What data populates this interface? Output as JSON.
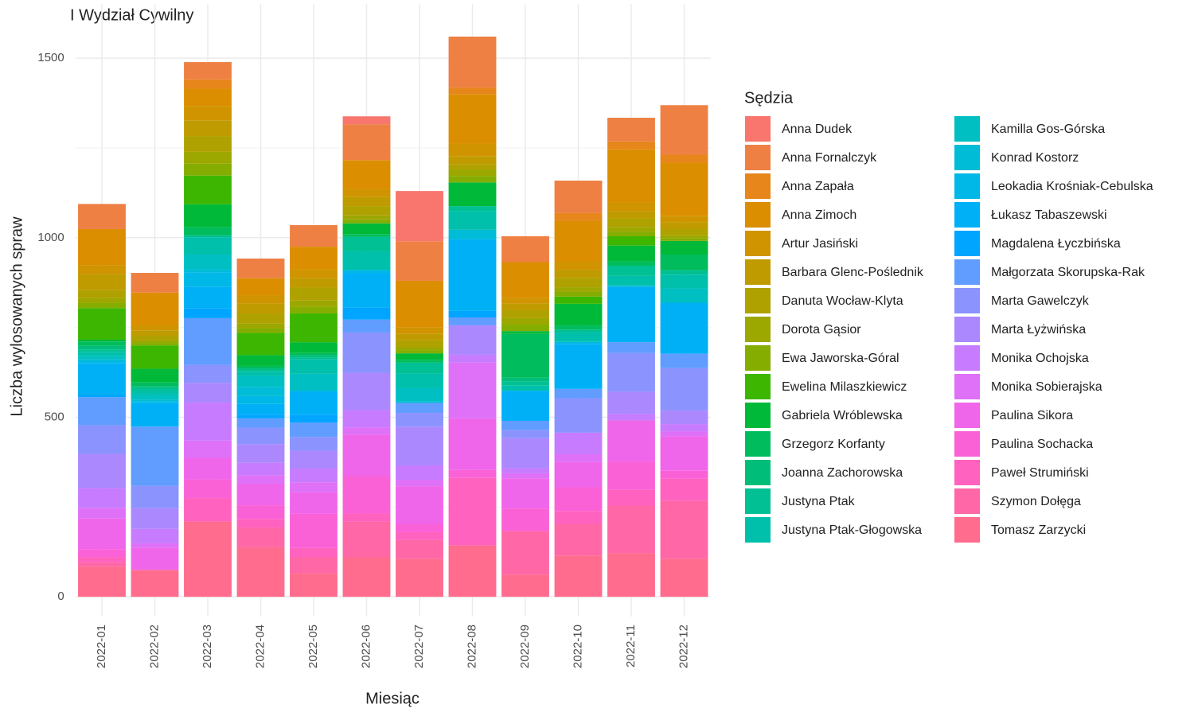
{
  "chart_data": {
    "type": "stacked_bar",
    "title": "I Wydział Cywilny",
    "x_label": "Miesiąc",
    "y_label": "Liczba wylosowanych spraw",
    "legend_title": "Sędzia",
    "categories": [
      "2022-01",
      "2022-02",
      "2022-03",
      "2022-04",
      "2022-05",
      "2022-06",
      "2022-07",
      "2022-08",
      "2022-09",
      "2022-10",
      "2022-11",
      "2022-12"
    ],
    "ylim": [
      -55,
      1650
    ],
    "yticks": [
      0,
      500,
      1000,
      1500
    ],
    "grid": true,
    "legend": "right",
    "series": [
      {
        "name": "Anna Dudek",
        "color": "#F8766D",
        "values": [
          0,
          0,
          0,
          0,
          0,
          22,
          140,
          0,
          0,
          0,
          0,
          0
        ]
      },
      {
        "name": "Anna Fornalczyk",
        "color": "#EE8044",
        "values": [
          70,
          55,
          48,
          55,
          60,
          100,
          110,
          142,
          72,
          90,
          66,
          138
        ]
      },
      {
        "name": "Anna Zapała",
        "color": "#E7861B",
        "values": [
          0,
          0,
          26,
          0,
          0,
          0,
          0,
          18,
          0,
          22,
          22,
          22
        ]
      },
      {
        "name": "Anna Zimoch",
        "color": "#DB8E00",
        "values": [
          100,
          90,
          48,
          48,
          62,
          80,
          130,
          138,
          100,
          115,
          148,
          148
        ]
      },
      {
        "name": "Artur Jasiński",
        "color": "#CF9400",
        "values": [
          25,
          15,
          40,
          22,
          26,
          22,
          18,
          36,
          16,
          22,
          24,
          18
        ]
      },
      {
        "name": "Barbara Glenc-Poślednik",
        "color": "#C09B00",
        "values": [
          45,
          15,
          44,
          28,
          26,
          26,
          18,
          22,
          18,
          22,
          20,
          18
        ]
      },
      {
        "name": "Danuta Wocław-Klyta",
        "color": "#AFA100",
        "values": [
          22,
          12,
          44,
          28,
          36,
          26,
          18,
          14,
          22,
          26,
          24,
          18
        ]
      },
      {
        "name": "Dorota Gąsior",
        "color": "#9CA700",
        "values": [
          14,
          8,
          33,
          13,
          18,
          11,
          9,
          18,
          18,
          13,
          13,
          8
        ]
      },
      {
        "name": "Ewa Jaworska-Góral",
        "color": "#84AD00",
        "values": [
          14,
          7,
          33,
          13,
          18,
          11,
          9,
          18,
          18,
          13,
          13,
          8
        ]
      },
      {
        "name": "Ewelina Milaszkiewicz",
        "color": "#3CB600",
        "values": [
          88,
          65,
          80,
          62,
          80,
          0,
          0,
          0,
          0,
          20,
          26,
          0
        ]
      },
      {
        "name": "Gabriela Wróblewska",
        "color": "#00B938",
        "values": [
          5,
          38,
          64,
          30,
          30,
          30,
          18,
          66,
          8,
          60,
          44,
          38
        ]
      },
      {
        "name": "Grzegorz Korfanty",
        "color": "#00BC5C",
        "values": [
          12,
          10,
          22,
          8,
          6,
          8,
          8,
          0,
          122,
          12,
          12,
          44
        ]
      },
      {
        "name": "Joanna Zachorowska",
        "color": "#00BE7A",
        "values": [
          10,
          6,
          0,
          0,
          6,
          0,
          0,
          0,
          10,
          0,
          0,
          0
        ]
      },
      {
        "name": "Justyna Ptak",
        "color": "#00C094",
        "values": [
          8,
          8,
          6,
          8,
          6,
          40,
          30,
          14,
          12,
          8,
          28,
          12
        ]
      },
      {
        "name": "Justyna Ptak-Głogowska",
        "color": "#00C0AC",
        "values": [
          10,
          12,
          48,
          12,
          40,
          52,
          40,
          52,
          14,
          26,
          26,
          38
        ]
      },
      {
        "name": "Kamilla Gos-Górska",
        "color": "#00BFC2",
        "values": [
          10,
          12,
          40,
          30,
          48,
          0,
          38,
          0,
          0,
          0,
          4,
          40
        ]
      },
      {
        "name": "Konrad Kostorz",
        "color": "#00BCD6",
        "values": [
          6,
          5,
          9,
          26,
          0,
          0,
          4,
          26,
          0,
          0,
          0,
          0
        ]
      },
      {
        "name": "Leokadia Krośniak-Cebulska",
        "color": "#00B8E7",
        "values": [
          5,
          5,
          40,
          22,
          0,
          8,
          0,
          0,
          0,
          7,
          0,
          0
        ]
      },
      {
        "name": "Łukasz Tabaszewski",
        "color": "#00B0F6",
        "values": [
          88,
          65,
          60,
          30,
          66,
          96,
          0,
          200,
          84,
          124,
          155,
          142
        ]
      },
      {
        "name": "Magdalena Łyczbińska",
        "color": "#00A5FF",
        "values": [
          6,
          0,
          28,
          10,
          22,
          34,
          0,
          18,
          0,
          0,
          0,
          0
        ]
      },
      {
        "name": "Małgorzata Skorupska-Rak",
        "color": "#619CFF",
        "values": [
          78,
          165,
          130,
          26,
          40,
          36,
          28,
          22,
          26,
          26,
          30,
          40
        ]
      },
      {
        "name": "Marta Gawelczyk",
        "color": "#8B93FF",
        "values": [
          80,
          62,
          50,
          46,
          38,
          112,
          38,
          0,
          22,
          96,
          108,
          118
        ]
      },
      {
        "name": "Marta Łyżwińska",
        "color": "#AC88FF",
        "values": [
          95,
          58,
          55,
          52,
          50,
          104,
          108,
          82,
          84,
          0,
          62,
          38
        ]
      },
      {
        "name": "Monika Ochojska",
        "color": "#C77CFF",
        "values": [
          55,
          40,
          106,
          34,
          38,
          48,
          40,
          22,
          14,
          60,
          18,
          20
        ]
      },
      {
        "name": "Monika Sobierajska",
        "color": "#DE71F8",
        "values": [
          30,
          12,
          48,
          24,
          28,
          20,
          18,
          155,
          14,
          22,
          0,
          14
        ]
      },
      {
        "name": "Paulina Sikora",
        "color": "#F066EA",
        "values": [
          85,
          62,
          60,
          60,
          60,
          116,
          106,
          144,
          84,
          70,
          115,
          96
        ]
      },
      {
        "name": "Paulina Sochacka",
        "color": "#FB61D7",
        "values": [
          22,
          0,
          52,
          38,
          95,
          104,
          22,
          22,
          62,
          66,
          78,
          22
        ]
      },
      {
        "name": "Paweł Strumiński",
        "color": "#FF62BF",
        "values": [
          15,
          0,
          65,
          24,
          26,
          22,
          22,
          188,
          2,
          36,
          44,
          62
        ]
      },
      {
        "name": "Szymon Dołęga",
        "color": "#FF67A6",
        "values": [
          12,
          0,
          0,
          55,
          44,
          100,
          52,
          0,
          120,
          88,
          132,
          161
        ]
      },
      {
        "name": "Tomasz Zarzycki",
        "color": "#FF6C8E",
        "values": [
          84,
          75,
          210,
          138,
          66,
          110,
          106,
          143,
          62,
          115,
          122,
          106
        ]
      }
    ]
  }
}
